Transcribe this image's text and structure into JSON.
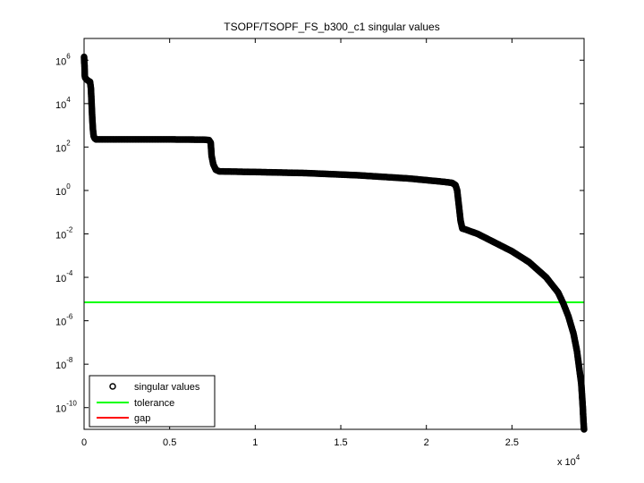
{
  "chart_data": {
    "type": "scatter",
    "title": "TSOPF/TSOPF_FS_b300_c1 singular values",
    "xlabel": "",
    "ylabel": "",
    "x_scale_note": "x 10",
    "x_scale_exponent": "4",
    "xlim": [
      0,
      29214
    ],
    "ylim_log10": [
      -11,
      7
    ],
    "y_scale": "log",
    "x_ticks": [
      {
        "value": 0,
        "label": "0"
      },
      {
        "value": 5000,
        "label": "0.5"
      },
      {
        "value": 10000,
        "label": "1"
      },
      {
        "value": 15000,
        "label": "1.5"
      },
      {
        "value": 20000,
        "label": "2"
      },
      {
        "value": 25000,
        "label": "2.5"
      }
    ],
    "y_ticks": [
      {
        "exp": 6,
        "base": "10",
        "sup": "6"
      },
      {
        "exp": 4,
        "base": "10",
        "sup": "4"
      },
      {
        "exp": 2,
        "base": "10",
        "sup": "2"
      },
      {
        "exp": 0,
        "base": "10",
        "sup": "0"
      },
      {
        "exp": -2,
        "base": "10",
        "sup": "-2"
      },
      {
        "exp": -4,
        "base": "10",
        "sup": "-4"
      },
      {
        "exp": -6,
        "base": "10",
        "sup": "-6"
      },
      {
        "exp": -8,
        "base": "10",
        "sup": "-8"
      },
      {
        "exp": -10,
        "base": "10",
        "sup": "-10"
      }
    ],
    "grid": false,
    "legend_placement": "bottom-left",
    "series": [
      {
        "name": "singular values",
        "style": "circle-markers",
        "color": "#000000",
        "points_log10": [
          [
            0,
            6.15
          ],
          [
            10,
            5.9
          ],
          [
            25,
            5.8
          ],
          [
            40,
            5.3
          ],
          [
            60,
            5.2
          ],
          [
            100,
            5.15
          ],
          [
            160,
            5.1
          ],
          [
            250,
            5.05
          ],
          [
            350,
            5.0
          ],
          [
            400,
            4.7
          ],
          [
            440,
            4.0
          ],
          [
            480,
            3.3
          ],
          [
            520,
            2.8
          ],
          [
            560,
            2.5
          ],
          [
            620,
            2.4
          ],
          [
            700,
            2.35
          ],
          [
            1000,
            2.35
          ],
          [
            3000,
            2.35
          ],
          [
            5000,
            2.35
          ],
          [
            7000,
            2.34
          ],
          [
            7300,
            2.32
          ],
          [
            7400,
            2.2
          ],
          [
            7450,
            1.6
          ],
          [
            7550,
            1.2
          ],
          [
            7700,
            0.95
          ],
          [
            7900,
            0.88
          ],
          [
            10000,
            0.85
          ],
          [
            13000,
            0.8
          ],
          [
            16000,
            0.7
          ],
          [
            19000,
            0.55
          ],
          [
            21000,
            0.4
          ],
          [
            21500,
            0.35
          ],
          [
            21700,
            0.25
          ],
          [
            21800,
            0.0
          ],
          [
            21900,
            -0.7
          ],
          [
            22000,
            -1.4
          ],
          [
            22100,
            -1.75
          ],
          [
            22300,
            -1.8
          ],
          [
            23000,
            -2.0
          ],
          [
            24000,
            -2.4
          ],
          [
            25000,
            -2.8
          ],
          [
            26000,
            -3.3
          ],
          [
            27000,
            -4.0
          ],
          [
            27700,
            -4.7
          ],
          [
            28000,
            -5.2
          ],
          [
            28300,
            -5.8
          ],
          [
            28600,
            -6.6
          ],
          [
            28800,
            -7.4
          ],
          [
            28950,
            -8.3
          ],
          [
            29050,
            -8.9
          ],
          [
            29100,
            -9.5
          ],
          [
            29140,
            -10.0
          ],
          [
            29170,
            -10.5
          ],
          [
            29200,
            -10.9
          ],
          [
            29214,
            -11.0
          ]
        ]
      },
      {
        "name": "tolerance",
        "style": "line",
        "color": "#00ff00",
        "y_log10": -5.15
      },
      {
        "name": "gap",
        "style": "line",
        "color": "#ff0000"
      }
    ]
  }
}
